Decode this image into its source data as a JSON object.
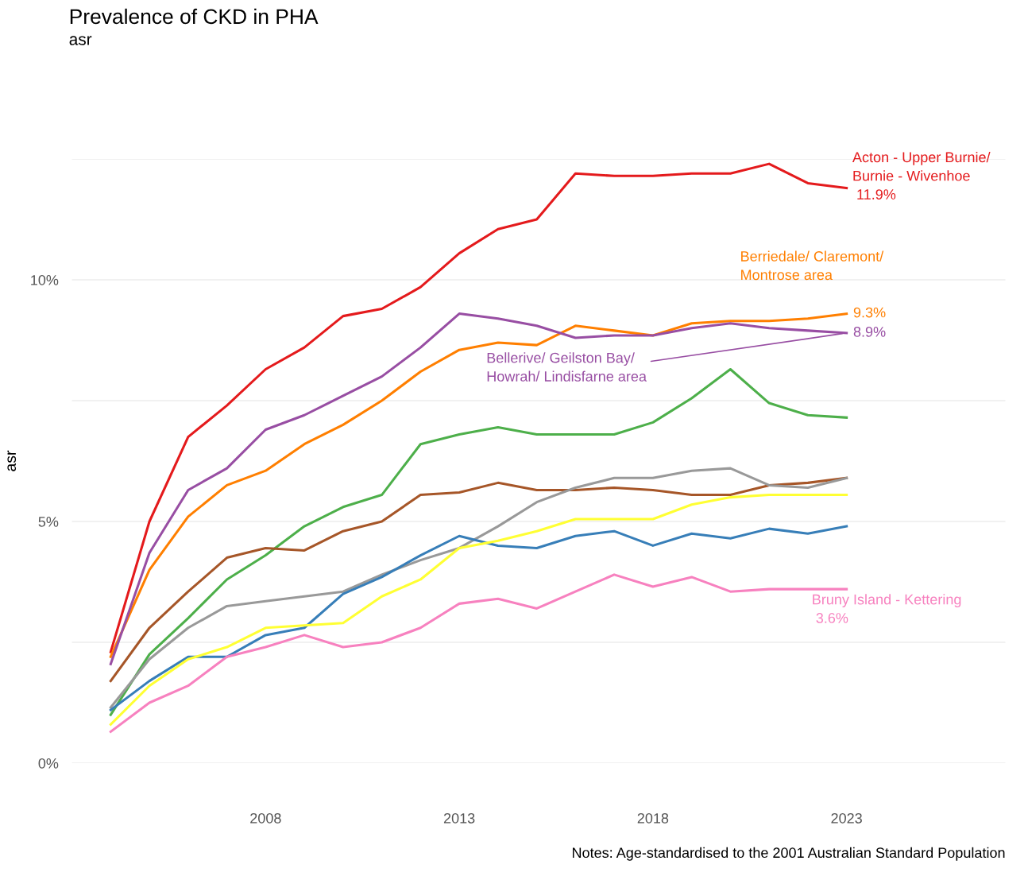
{
  "chart_data": {
    "type": "line",
    "title": "Prevalence of CKD in PHA",
    "subtitle": "asr",
    "ylabel": "asr",
    "annotations": [
      "Notes: Age-standardised to the 2001 Australian Standard Population"
    ],
    "x": [
      2004,
      2005,
      2006,
      2007,
      2008,
      2009,
      2010,
      2011,
      2012,
      2013,
      2014,
      2015,
      2016,
      2017,
      2018,
      2019,
      2020,
      2021,
      2022,
      2023
    ],
    "series": [
      {
        "name": "Acton - Upper Burnie/\nBurnie - Wivenhoe",
        "color": "#e41a1c",
        "values": [
          2.3,
          5.0,
          6.75,
          7.4,
          8.15,
          8.6,
          9.25,
          9.4,
          9.85,
          10.55,
          11.05,
          11.25,
          12.2,
          12.15,
          12.15,
          12.2,
          12.2,
          12.4,
          12.0,
          11.9
        ],
        "value_labels": [
          null,
          null,
          null,
          null,
          null,
          null,
          null,
          null,
          null,
          null,
          null,
          null,
          null,
          null,
          null,
          null,
          null,
          null,
          null,
          "11.9%"
        ]
      },
      {
        "name": "Berriedale/ Claremont/\nMontrose area",
        "color": "#ff7f00",
        "values": [
          2.2,
          4.0,
          5.1,
          5.75,
          6.05,
          6.6,
          7.0,
          7.5,
          8.1,
          8.55,
          8.7,
          8.65,
          9.05,
          8.95,
          8.85,
          9.1,
          9.15,
          9.15,
          9.2,
          9.3
        ],
        "value_labels": [
          null,
          null,
          null,
          null,
          null,
          null,
          null,
          null,
          null,
          null,
          null,
          null,
          null,
          null,
          null,
          null,
          null,
          null,
          null,
          "9.3%"
        ]
      },
      {
        "name": "Bellerive/ Geilston Bay/\nHowrah/ Lindisfarne area",
        "color": "#984ea3",
        "values": [
          2.05,
          4.35,
          5.65,
          6.1,
          6.9,
          7.2,
          7.6,
          8.0,
          8.6,
          9.3,
          9.2,
          9.05,
          8.8,
          8.85,
          8.85,
          9.0,
          9.1,
          9.0,
          8.95,
          8.9
        ],
        "value_labels": [
          null,
          null,
          null,
          null,
          null,
          null,
          null,
          null,
          null,
          null,
          null,
          null,
          null,
          null,
          null,
          null,
          null,
          null,
          null,
          "8.9%"
        ]
      },
      {
        "color": "#4daf4a",
        "values": [
          1.0,
          2.25,
          3.0,
          3.8,
          4.3,
          4.9,
          5.3,
          5.55,
          6.6,
          6.8,
          6.95,
          6.8,
          6.8,
          6.8,
          7.05,
          7.55,
          8.15,
          7.45,
          7.2,
          7.15
        ]
      },
      {
        "color": "#a65628",
        "values": [
          1.7,
          2.8,
          3.55,
          4.25,
          4.45,
          4.4,
          4.8,
          5.0,
          5.55,
          5.6,
          5.8,
          5.65,
          5.65,
          5.7,
          5.65,
          5.55,
          5.55,
          5.75,
          5.8,
          5.9
        ]
      },
      {
        "color": "#999999",
        "values": [
          1.15,
          2.15,
          2.8,
          3.25,
          3.35,
          3.45,
          3.55,
          3.9,
          4.2,
          4.45,
          4.9,
          5.4,
          5.7,
          5.9,
          5.9,
          6.05,
          6.1,
          5.75,
          5.7,
          5.9
        ]
      },
      {
        "color": "#377eb8",
        "values": [
          1.1,
          1.7,
          2.2,
          2.2,
          2.65,
          2.8,
          3.5,
          3.85,
          4.3,
          4.7,
          4.5,
          4.45,
          4.7,
          4.8,
          4.5,
          4.75,
          4.65,
          4.85,
          4.75,
          4.9
        ]
      },
      {
        "color": "#ffff33",
        "values": [
          0.8,
          1.6,
          2.15,
          2.4,
          2.8,
          2.85,
          2.9,
          3.45,
          3.8,
          4.45,
          4.6,
          4.8,
          5.05,
          5.05,
          5.05,
          5.35,
          5.5,
          5.55,
          5.55,
          5.55
        ]
      },
      {
        "name": "Bruny Island - Kettering",
        "color": "#f781bf",
        "values": [
          0.65,
          1.25,
          1.6,
          2.2,
          2.4,
          2.65,
          2.4,
          2.5,
          2.8,
          3.3,
          3.4,
          3.2,
          3.55,
          3.9,
          3.65,
          3.85,
          3.55,
          3.6,
          3.6,
          3.6
        ],
        "value_labels": [
          null,
          null,
          null,
          null,
          null,
          null,
          null,
          null,
          null,
          null,
          null,
          null,
          null,
          null,
          null,
          null,
          null,
          null,
          null,
          "3.6%"
        ]
      }
    ],
    "xlim": [
      2003,
      2027.1
    ],
    "ylim": [
      0,
      12.5
    ],
    "xticks": [
      2008,
      2013,
      2018,
      2023
    ],
    "yticks": [
      {
        "value": 0,
        "label": "0%"
      },
      {
        "value": 2.5,
        "label": null
      },
      {
        "value": 5,
        "label": "5%"
      },
      {
        "value": 7.5,
        "label": null
      },
      {
        "value": 10,
        "label": "10%"
      },
      {
        "value": 12.5,
        "label": null
      }
    ],
    "grid": "y",
    "legend": false,
    "marker": "none",
    "line_style": "solid"
  }
}
